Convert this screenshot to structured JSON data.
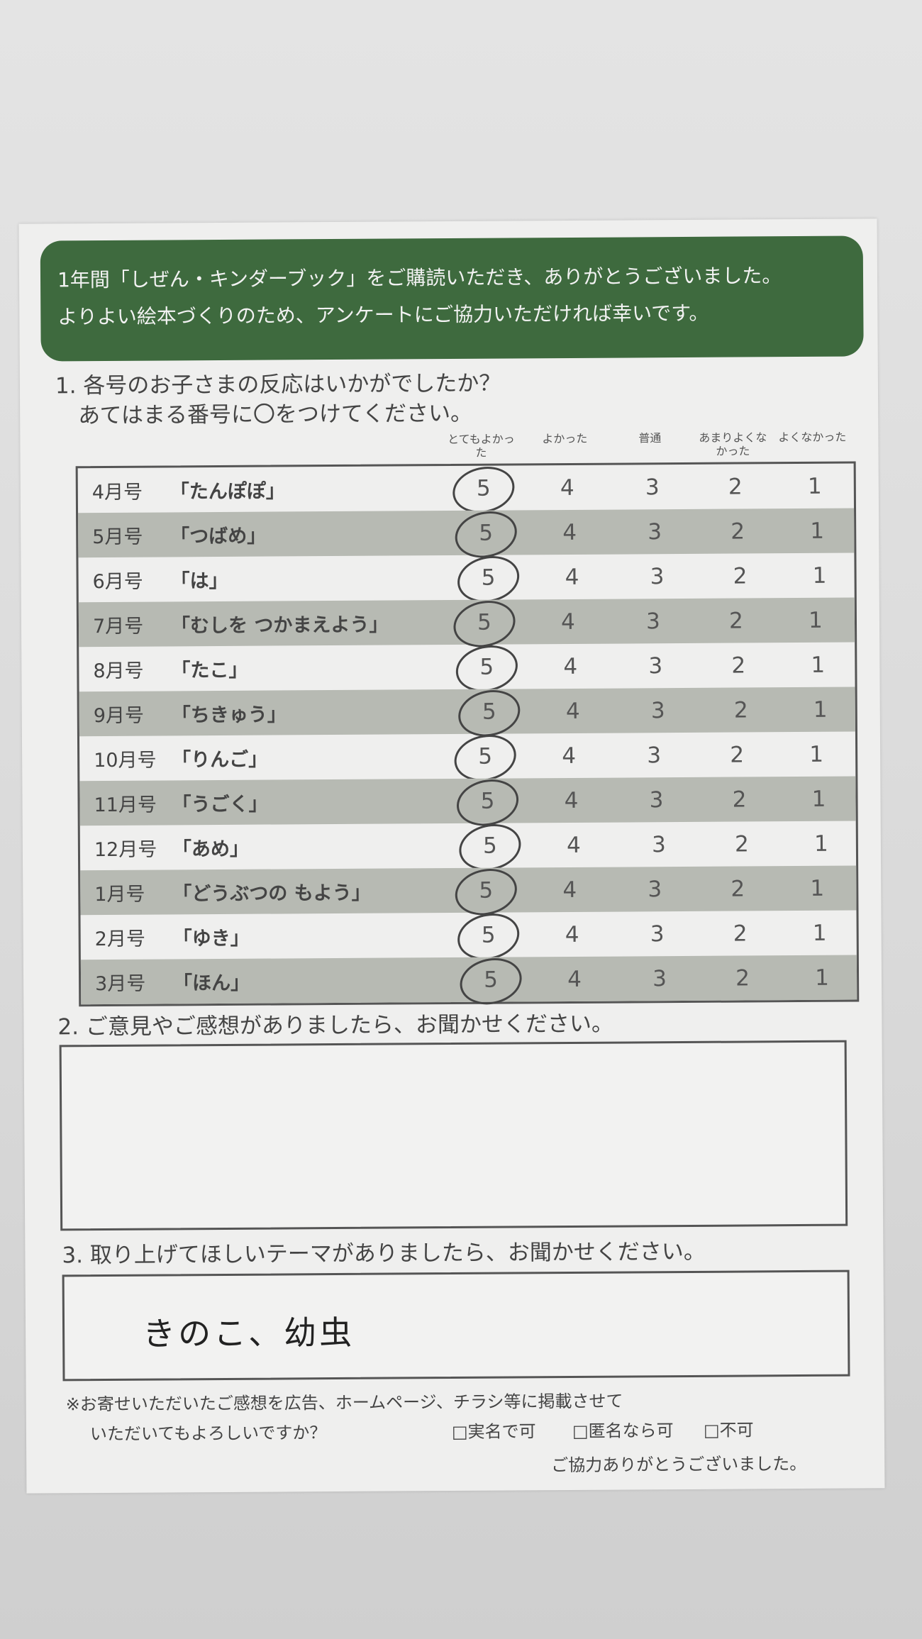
{
  "banner": {
    "line1": "1年間「しぜん・キンダーブック」をご購読いただき、ありがとうございました。",
    "line2": "よりよい絵本づくりのため、アンケートにご協力いただければ幸いです。"
  },
  "q1": {
    "line1": "1. 各号のお子さまの反応はいかがでしたか？",
    "line2": "あてはまる番号に〇をつけてください。",
    "columns": [
      {
        "label": "とてもよかった",
        "value": "5"
      },
      {
        "label": "よかった",
        "value": "4"
      },
      {
        "label": "普通",
        "value": "3"
      },
      {
        "label": "あまりよくなかった",
        "value": "2"
      },
      {
        "label": "よくなかった",
        "value": "1"
      }
    ],
    "rows": [
      {
        "month": "4月号",
        "title": "「たんぽぽ」",
        "selected": "5"
      },
      {
        "month": "5月号",
        "title": "「つばめ」",
        "selected": "5"
      },
      {
        "month": "6月号",
        "title": "「は」",
        "selected": "5"
      },
      {
        "month": "7月号",
        "title": "「むしを つかまえよう」",
        "selected": "5"
      },
      {
        "month": "8月号",
        "title": "「たこ」",
        "selected": "5"
      },
      {
        "month": "9月号",
        "title": "「ちきゅう」",
        "selected": "5"
      },
      {
        "month": "10月号",
        "title": "「りんご」",
        "selected": "5"
      },
      {
        "month": "11月号",
        "title": "「うごく」",
        "selected": "5"
      },
      {
        "month": "12月号",
        "title": "「あめ」",
        "selected": "5"
      },
      {
        "month": "1月号",
        "title": "「どうぶつの もよう」",
        "selected": "5"
      },
      {
        "month": "2月号",
        "title": "「ゆき」",
        "selected": "5"
      },
      {
        "month": "3月号",
        "title": "「ほん」",
        "selected": "5"
      }
    ]
  },
  "q2": {
    "label": "2. ご意見やご感想がありましたら、お聞かせください。",
    "answer": ""
  },
  "q3": {
    "label": "3. 取り上げてほしいテーマがありましたら、お聞かせください。",
    "answer": "きのこ、幼虫"
  },
  "consent": {
    "line1": "※お寄せいただいたご感想を広告、ホームページ、チラシ等に掲載させて",
    "line2": "いただいてもよろしいですか？",
    "options": [
      "□実名で可",
      "□匿名なら可",
      "□不可"
    ]
  },
  "thanks": "ご協力ありがとうございました。",
  "colors": {
    "banner": "#3e6a3e",
    "stripe": "#b7bab3"
  }
}
